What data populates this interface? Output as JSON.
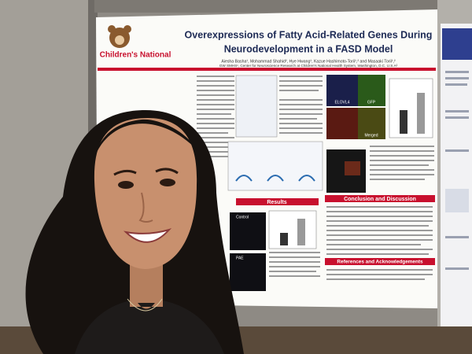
{
  "poster": {
    "logo": "Children's National",
    "title_lines": [
      "Overexpressions of Fatty Acid-Related Genes During",
      "Neurodevelopment in a FASD Model"
    ],
    "authors": "Aiesha Basha¹, Mohammad Shahid², Hye Hwang¹, Kazue Hashimoto-Torii¹,² and Masaaki Torii¹,²",
    "affiliation": "GW SMHS¹, Center for Neuroscience Research at Children's National Health System, Washington, D.C. U.S.A²",
    "sections": [
      "Results",
      "Conclusion and Discussion",
      "References and Acknowledgements"
    ],
    "figure_labels": [
      "Control",
      "PAE",
      "ELOVL4",
      "GFP",
      "Merged"
    ]
  }
}
